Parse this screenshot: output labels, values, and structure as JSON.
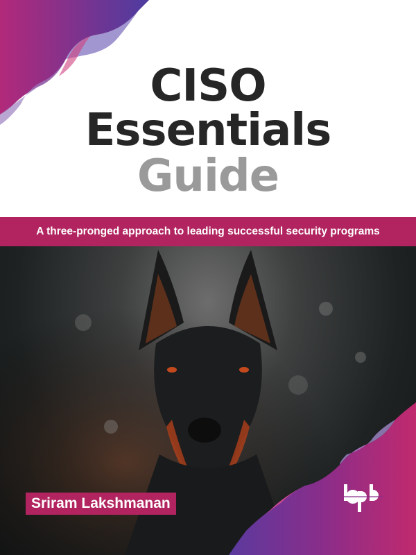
{
  "title": {
    "line1": "CISO",
    "line2": "Essentials",
    "line3": "Guide"
  },
  "subtitle": "A three-pronged approach to leading successful security programs",
  "author": "Sriram Lakshmanan",
  "publisher_logo": "bpb",
  "colors": {
    "accent": "#b1245f",
    "title_dark": "#262626",
    "title_gray": "#9a9a9a",
    "wave_purple": "#5b3a9e",
    "wave_magenta": "#c02a6e"
  }
}
